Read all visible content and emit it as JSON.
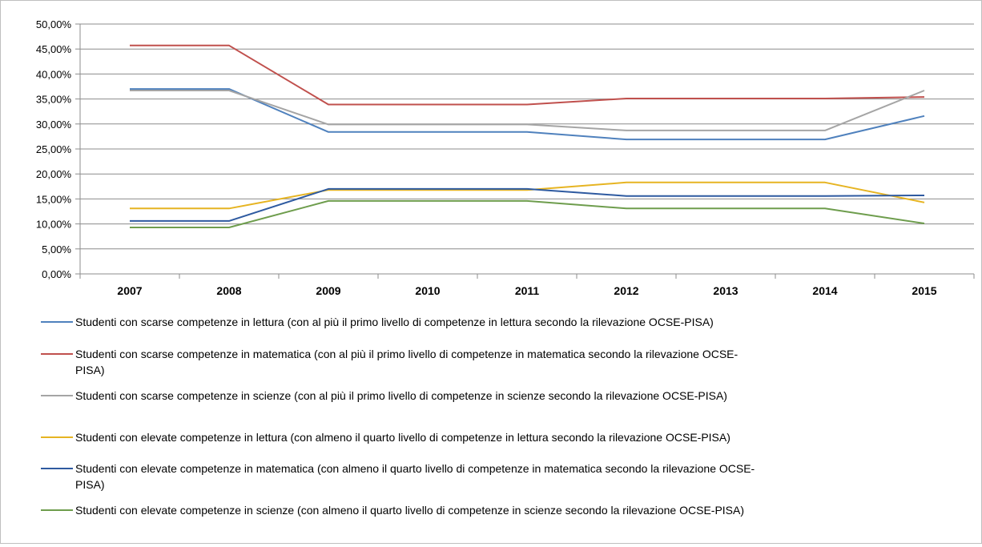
{
  "chart_data": {
    "type": "line",
    "title": "",
    "xlabel": "",
    "ylabel": "",
    "categories": [
      "2007",
      "2008",
      "2009",
      "2010",
      "2011",
      "2012",
      "2013",
      "2014",
      "2015"
    ],
    "y_ticks": [
      "0,00%",
      "5,00%",
      "10,00%",
      "15,00%",
      "20,00%",
      "25,00%",
      "30,00%",
      "35,00%",
      "40,00%",
      "45,00%",
      "50,00%"
    ],
    "ylim": [
      0,
      50
    ],
    "grid": true,
    "legend_position": "bottom",
    "series": [
      {
        "name": "Studenti con scarse competenze in lettura (con al più il primo livello di competenze in lettura secondo la rilevazione OCSE-PISA)",
        "legend_lines": [
          "Studenti con scarse competenze in lettura (con al più il primo livello di competenze in lettura secondo la rilevazione OCSE-PISA)"
        ],
        "color": "#4f81bd",
        "values": [
          37.0,
          37.0,
          28.4,
          28.4,
          28.4,
          26.9,
          26.9,
          26.9,
          31.6
        ]
      },
      {
        "name": "Studenti con scarse competenze in matematica (con al più il primo livello di competenze in matematica secondo la rilevazione OCSE-PISA)",
        "legend_lines": [
          "Studenti con scarse competenze in matematica (con al più il primo livello di competenze in matematica secondo la rilevazione OCSE-",
          "PISA)"
        ],
        "color": "#c0504d",
        "values": [
          45.7,
          45.7,
          33.9,
          33.9,
          33.9,
          35.1,
          35.1,
          35.1,
          35.4
        ]
      },
      {
        "name": "Studenti con scarse competenze in scienze (con al più il primo livello di competenze in scienze secondo la rilevazione OCSE-PISA)",
        "legend_lines": [
          "Studenti con scarse competenze in scienze (con al più il primo livello di competenze in scienze secondo la rilevazione OCSE-PISA)"
        ],
        "color": "#a5a5a5",
        "values": [
          36.7,
          36.7,
          29.9,
          29.9,
          29.9,
          28.7,
          28.7,
          28.7,
          36.7
        ]
      },
      {
        "name": "Studenti con elevate competenze in lettura (con almeno il quarto livello di competenze in lettura secondo la rilevazione OCSE-PISA)",
        "legend_lines": [
          "Studenti con elevate competenze in lettura (con almeno il quarto livello di competenze in lettura secondo la rilevazione OCSE-PISA)"
        ],
        "color": "#e6b422",
        "values": [
          13.1,
          13.1,
          16.8,
          16.8,
          16.8,
          18.3,
          18.3,
          18.3,
          14.3
        ]
      },
      {
        "name": "Studenti con elevate competenze in matematica (con almeno il quarto livello di competenze in matematica secondo la rilevazione OCSE-PISA)",
        "legend_lines": [
          "Studenti con elevate competenze in matematica (con almeno il quarto livello di competenze in matematica secondo la rilevazione OCSE-",
          "PISA)"
        ],
        "color": "#2e5aa0",
        "values": [
          10.6,
          10.6,
          17.0,
          17.0,
          17.0,
          15.6,
          15.6,
          15.6,
          15.7
        ]
      },
      {
        "name": "Studenti con elevate competenze in scienze (con almeno il quarto livello di competenze in scienze secondo la rilevazione OCSE-PISA)",
        "legend_lines": [
          "Studenti con elevate competenze in scienze (con almeno il quarto livello di competenze in scienze secondo la rilevazione OCSE-PISA)"
        ],
        "color": "#6e9d4d",
        "values": [
          9.3,
          9.3,
          14.6,
          14.6,
          14.6,
          13.1,
          13.1,
          13.1,
          10.1
        ]
      }
    ]
  }
}
